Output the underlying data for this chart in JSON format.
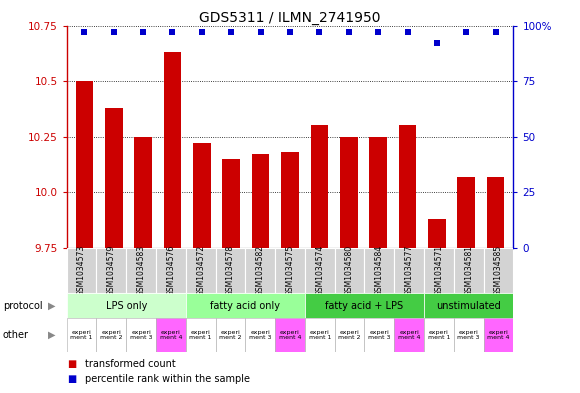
{
  "title": "GDS5311 / ILMN_2741950",
  "samples": [
    "GSM1034573",
    "GSM1034579",
    "GSM1034583",
    "GSM1034576",
    "GSM1034572",
    "GSM1034578",
    "GSM1034582",
    "GSM1034575",
    "GSM1034574",
    "GSM1034580",
    "GSM1034584",
    "GSM1034577",
    "GSM1034571",
    "GSM1034581",
    "GSM1034585"
  ],
  "bar_values": [
    10.5,
    10.38,
    10.25,
    10.63,
    10.22,
    10.15,
    10.17,
    10.18,
    10.3,
    10.25,
    10.25,
    10.3,
    9.88,
    10.07,
    10.07
  ],
  "dot_values": [
    97,
    97,
    97,
    97,
    97,
    97,
    97,
    97,
    97,
    97,
    97,
    97,
    92,
    97,
    97
  ],
  "ylim_left": [
    9.75,
    10.75
  ],
  "ylim_right": [
    0,
    100
  ],
  "yticks_left": [
    9.75,
    10.0,
    10.25,
    10.5,
    10.75
  ],
  "yticks_right": [
    0,
    25,
    50,
    75,
    100
  ],
  "bar_color": "#cc0000",
  "dot_color": "#0000cc",
  "groups": [
    {
      "label": "LPS only",
      "start": 0,
      "end": 4,
      "color": "#ccffcc"
    },
    {
      "label": "fatty acid only",
      "start": 4,
      "end": 8,
      "color": "#99ff99"
    },
    {
      "label": "fatty acid + LPS",
      "start": 8,
      "end": 12,
      "color": "#44cc44"
    },
    {
      "label": "unstimulated",
      "start": 12,
      "end": 15,
      "color": "#44cc44"
    }
  ],
  "protocol_label": "protocol",
  "other_label": "other",
  "other_colors": [
    "#ffffff",
    "#ffffff",
    "#ffffff",
    "#ff66ff",
    "#ffffff",
    "#ffffff",
    "#ffffff",
    "#ff66ff",
    "#ffffff",
    "#ffffff",
    "#ffffff",
    "#ff66ff",
    "#ffffff",
    "#ffffff",
    "#ff66ff"
  ],
  "other_texts": [
    "experi\nment 1",
    "experi\nment 2",
    "experi\nment 3",
    "experi\nment 4",
    "experi\nment 1",
    "experi\nment 2",
    "experi\nment 3",
    "experi\nment 4",
    "experi\nment 1",
    "experi\nment 2",
    "experi\nment 3",
    "experi\nment 4",
    "experi\nment 1",
    "experi\nment 3",
    "experi\nment 4"
  ],
  "legend_items": [
    {
      "color": "#cc0000",
      "label": "transformed count"
    },
    {
      "color": "#0000cc",
      "label": "percentile rank within the sample"
    }
  ],
  "background_color": "#ffffff",
  "tick_color_left": "#cc0000",
  "tick_color_right": "#0000cc",
  "sample_bg": "#d3d3d3",
  "arrow_color": "#888888"
}
